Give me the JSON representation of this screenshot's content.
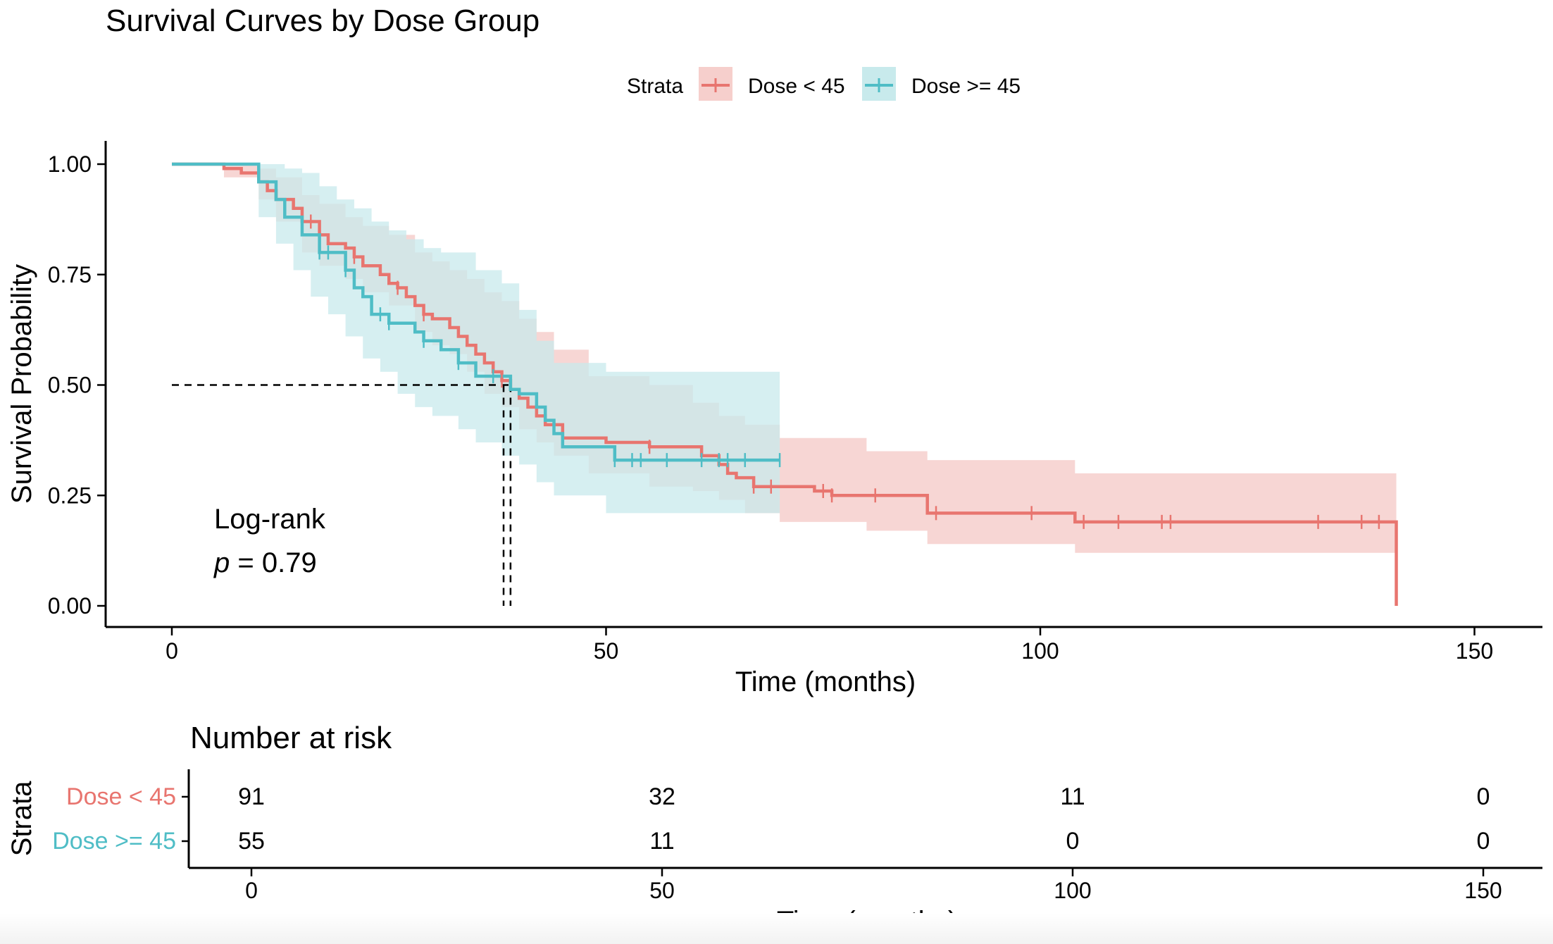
{
  "chart_data": {
    "type": "line",
    "subtype": "kaplan-meier survival curves with 95% confidence bands",
    "title": "Survival Curves by Dose Group",
    "xlabel": "Time (months)",
    "ylabel": "Survival Probability",
    "xlim": [
      0,
      150
    ],
    "ylim": [
      0,
      1
    ],
    "xticks": [
      "0",
      "50",
      "100",
      "150"
    ],
    "yticks": [
      "0.00",
      "0.25",
      "0.50",
      "0.75",
      "1.00"
    ],
    "grid": false,
    "legend": {
      "position": "top",
      "title": "Strata",
      "entries": [
        "Dose < 45",
        "Dose >= 45"
      ]
    },
    "annotation": {
      "line1": "Log-rank",
      "p_symbol": "p",
      "p_rest": " = 0.79"
    },
    "median_survival": {
      "probability": 0.5,
      "times": [
        38.2,
        39.0
      ]
    },
    "series": [
      {
        "name": "Dose < 45",
        "color": "#E8756F",
        "band_color": "#F6CFCC",
        "steps": [
          [
            0,
            1.0
          ],
          [
            6,
            0.99
          ],
          [
            8,
            0.98
          ],
          [
            10,
            0.96
          ],
          [
            11,
            0.94
          ],
          [
            12,
            0.92
          ],
          [
            14,
            0.9
          ],
          [
            15,
            0.87
          ],
          [
            17,
            0.84
          ],
          [
            18,
            0.82
          ],
          [
            20,
            0.81
          ],
          [
            21,
            0.79
          ],
          [
            22,
            0.77
          ],
          [
            24,
            0.75
          ],
          [
            25,
            0.73
          ],
          [
            26,
            0.72
          ],
          [
            27,
            0.7
          ],
          [
            28,
            0.68
          ],
          [
            29,
            0.66
          ],
          [
            30,
            0.65
          ],
          [
            32,
            0.63
          ],
          [
            33,
            0.61
          ],
          [
            34,
            0.59
          ],
          [
            35,
            0.57
          ],
          [
            36,
            0.55
          ],
          [
            37,
            0.53
          ],
          [
            38,
            0.51
          ],
          [
            39,
            0.49
          ],
          [
            40,
            0.47
          ],
          [
            41,
            0.45
          ],
          [
            42,
            0.43
          ],
          [
            43,
            0.41
          ],
          [
            45,
            0.38
          ],
          [
            50,
            0.37
          ],
          [
            55,
            0.36
          ],
          [
            61,
            0.34
          ],
          [
            63,
            0.32
          ],
          [
            64,
            0.3
          ],
          [
            65,
            0.29
          ],
          [
            67,
            0.27
          ],
          [
            74,
            0.26
          ],
          [
            76,
            0.25
          ],
          [
            87,
            0.21
          ],
          [
            104,
            0.19
          ],
          [
            141,
            0.19
          ],
          [
            141,
            0.0
          ]
        ],
        "band_upper": [
          [
            0,
            1.0
          ],
          [
            6,
            1.0
          ],
          [
            10,
            0.99
          ],
          [
            12,
            0.97
          ],
          [
            15,
            0.93
          ],
          [
            17,
            0.91
          ],
          [
            20,
            0.88
          ],
          [
            22,
            0.86
          ],
          [
            25,
            0.84
          ],
          [
            28,
            0.8
          ],
          [
            30,
            0.78
          ],
          [
            32,
            0.76
          ],
          [
            34,
            0.74
          ],
          [
            36,
            0.71
          ],
          [
            38,
            0.69
          ],
          [
            40,
            0.65
          ],
          [
            42,
            0.62
          ],
          [
            44,
            0.58
          ],
          [
            48,
            0.52
          ],
          [
            55,
            0.5
          ],
          [
            60,
            0.46
          ],
          [
            63,
            0.43
          ],
          [
            66,
            0.41
          ],
          [
            70,
            0.38
          ],
          [
            80,
            0.35
          ],
          [
            87,
            0.33
          ],
          [
            104,
            0.3
          ],
          [
            141,
            0.3
          ]
        ],
        "band_lower": [
          [
            0,
            1.0
          ],
          [
            6,
            0.97
          ],
          [
            10,
            0.92
          ],
          [
            12,
            0.87
          ],
          [
            15,
            0.8
          ],
          [
            17,
            0.77
          ],
          [
            20,
            0.74
          ],
          [
            22,
            0.71
          ],
          [
            25,
            0.68
          ],
          [
            28,
            0.62
          ],
          [
            30,
            0.59
          ],
          [
            32,
            0.57
          ],
          [
            34,
            0.53
          ],
          [
            36,
            0.48
          ],
          [
            38,
            0.45
          ],
          [
            40,
            0.4
          ],
          [
            42,
            0.37
          ],
          [
            44,
            0.34
          ],
          [
            48,
            0.3
          ],
          [
            55,
            0.27
          ],
          [
            60,
            0.26
          ],
          [
            63,
            0.24
          ],
          [
            66,
            0.21
          ],
          [
            70,
            0.19
          ],
          [
            80,
            0.17
          ],
          [
            87,
            0.14
          ],
          [
            104,
            0.12
          ],
          [
            141,
            0.12
          ]
        ],
        "censor_times": [
          16,
          21,
          26,
          29,
          38,
          55,
          67,
          69,
          75,
          76,
          81,
          88,
          99,
          105,
          109,
          114,
          115,
          132,
          137,
          139
        ]
      },
      {
        "name": "Dose >= 45",
        "color": "#4FBDC6",
        "band_color": "#C8EAEC",
        "steps": [
          [
            0,
            1.0
          ],
          [
            10,
            0.96
          ],
          [
            12,
            0.92
          ],
          [
            13,
            0.88
          ],
          [
            15,
            0.84
          ],
          [
            17,
            0.8
          ],
          [
            20,
            0.76
          ],
          [
            21,
            0.72
          ],
          [
            22,
            0.7
          ],
          [
            23,
            0.66
          ],
          [
            25,
            0.64
          ],
          [
            28,
            0.62
          ],
          [
            29,
            0.6
          ],
          [
            31,
            0.58
          ],
          [
            33,
            0.55
          ],
          [
            35,
            0.52
          ],
          [
            39,
            0.49
          ],
          [
            40,
            0.48
          ],
          [
            42,
            0.45
          ],
          [
            43,
            0.42
          ],
          [
            44,
            0.39
          ],
          [
            45,
            0.36
          ],
          [
            51,
            0.33
          ],
          [
            70,
            0.33
          ]
        ],
        "band_upper": [
          [
            0,
            1.0
          ],
          [
            10,
            1.0
          ],
          [
            13,
            0.99
          ],
          [
            15,
            0.98
          ],
          [
            17,
            0.95
          ],
          [
            19,
            0.92
          ],
          [
            21,
            0.9
          ],
          [
            23,
            0.87
          ],
          [
            25,
            0.85
          ],
          [
            27,
            0.83
          ],
          [
            29,
            0.81
          ],
          [
            31,
            0.8
          ],
          [
            35,
            0.76
          ],
          [
            38,
            0.73
          ],
          [
            40,
            0.67
          ],
          [
            42,
            0.6
          ],
          [
            44,
            0.55
          ],
          [
            50,
            0.53
          ],
          [
            70,
            0.53
          ]
        ],
        "band_lower": [
          [
            0,
            1.0
          ],
          [
            10,
            0.88
          ],
          [
            12,
            0.82
          ],
          [
            14,
            0.76
          ],
          [
            16,
            0.7
          ],
          [
            18,
            0.66
          ],
          [
            20,
            0.61
          ],
          [
            22,
            0.56
          ],
          [
            24,
            0.53
          ],
          [
            26,
            0.48
          ],
          [
            28,
            0.45
          ],
          [
            30,
            0.43
          ],
          [
            33,
            0.4
          ],
          [
            35,
            0.37
          ],
          [
            38,
            0.34
          ],
          [
            40,
            0.32
          ],
          [
            42,
            0.28
          ],
          [
            44,
            0.25
          ],
          [
            50,
            0.21
          ],
          [
            70,
            0.21
          ]
        ],
        "censor_times": [
          17,
          18,
          20,
          24,
          25,
          29,
          33,
          37,
          51,
          53,
          54,
          57,
          61,
          63,
          64,
          66,
          70
        ]
      }
    ]
  },
  "risk_table": {
    "title": "Number at risk",
    "ylabel": "Strata",
    "xlabel": "Time (months)",
    "times": [
      0,
      50,
      100,
      150
    ],
    "time_labels": [
      "0",
      "50",
      "100",
      "150"
    ],
    "rows": [
      {
        "name": "Dose < 45",
        "color": "#E8756F",
        "counts": [
          "91",
          "32",
          "11",
          "0"
        ]
      },
      {
        "name": "Dose >= 45",
        "color": "#4FBDC6",
        "counts": [
          "55",
          "11",
          "0",
          "0"
        ]
      }
    ]
  }
}
